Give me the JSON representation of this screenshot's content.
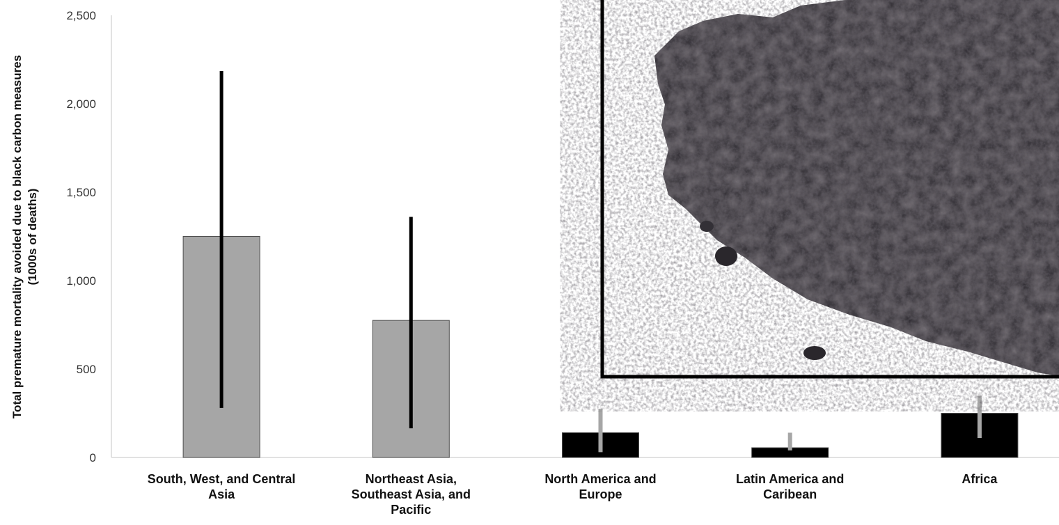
{
  "chart_data": {
    "type": "bar",
    "ylabel": [
      "Total premature mortality avoided due to black carbon measures",
      "(1000s of deaths)"
    ],
    "ylim": [
      0,
      2500
    ],
    "yticks": [
      "0",
      "500",
      "1,000",
      "1,500",
      "2,000",
      "2,500"
    ],
    "ytick_values": [
      0,
      500,
      1000,
      1500,
      2000,
      2500
    ],
    "grid": false,
    "categories": [
      [
        "South, West, and Central",
        "Asia"
      ],
      [
        "Northeast Asia,",
        "Southeast Asia, and",
        "Pacific"
      ],
      [
        "North America and",
        "Europe"
      ],
      [
        "Latin America and",
        "Caribean"
      ],
      [
        "Africa"
      ]
    ],
    "values": [
      1250,
      775,
      140,
      55,
      250
    ],
    "error_low": [
      280,
      165,
      30,
      40,
      110
    ],
    "error_high": [
      2185,
      1360,
      275,
      140,
      350
    ],
    "bar_colors": [
      "#a6a6a6",
      "#a6a6a6",
      "#000000",
      "#000000",
      "#000000"
    ],
    "error_colors": [
      "#000000",
      "#000000",
      "#a6a6a6",
      "#a6a6a6",
      "#a6a6a6"
    ]
  },
  "inset_image": {
    "description_icon": "black-carbon-powder-photo",
    "frame_color": "#000000"
  }
}
